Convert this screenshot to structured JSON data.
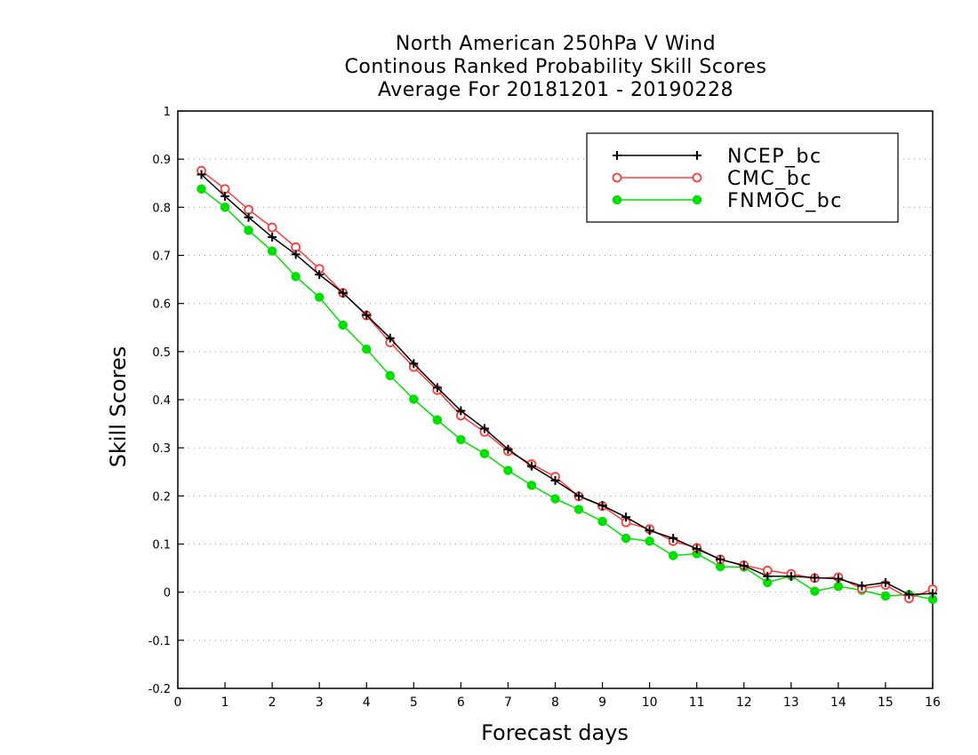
{
  "chart_data": {
    "type": "line",
    "title": [
      "North American 250hPa V Wind",
      "Continous Ranked Probability Skill Scores",
      "Average For 20181201 - 20190228"
    ],
    "xlabel": "Forecast days",
    "ylabel": "Skill Scores",
    "xlim": [
      0,
      16
    ],
    "ylim": [
      -0.2,
      1
    ],
    "x_ticks": [
      0,
      1,
      2,
      3,
      4,
      5,
      6,
      7,
      8,
      9,
      10,
      11,
      12,
      13,
      14,
      15,
      16
    ],
    "y_ticks": [
      -0.2,
      -0.1,
      0,
      0.1,
      0.2,
      0.3,
      0.4,
      0.5,
      0.6,
      0.7,
      0.8,
      0.9,
      1
    ],
    "grid": "horizontal dotted",
    "legend_position": "top-right",
    "x": [
      0.5,
      1,
      1.5,
      2,
      2.5,
      3,
      3.5,
      4,
      4.5,
      5,
      5.5,
      6,
      6.5,
      7,
      7.5,
      8,
      8.5,
      9,
      9.5,
      10,
      10.5,
      11,
      11.5,
      12,
      12.5,
      13,
      13.5,
      14,
      14.5,
      15,
      15.5,
      16
    ],
    "series": [
      {
        "name": "NCEP_bc",
        "color": "#000000",
        "marker": "plus",
        "values": [
          0.868,
          0.823,
          0.779,
          0.738,
          0.702,
          0.66,
          0.622,
          0.576,
          0.528,
          0.475,
          0.425,
          0.377,
          0.34,
          0.297,
          0.262,
          0.232,
          0.2,
          0.18,
          0.156,
          0.128,
          0.112,
          0.09,
          0.068,
          0.055,
          0.033,
          0.033,
          0.03,
          0.028,
          0.013,
          0.02,
          -0.005,
          -0.003
        ]
      },
      {
        "name": "CMC_bc",
        "color": "#ff3b3b",
        "marker": "open-circle",
        "values": [
          0.876,
          0.838,
          0.795,
          0.758,
          0.717,
          0.672,
          0.622,
          0.575,
          0.519,
          0.468,
          0.42,
          0.367,
          0.333,
          0.293,
          0.266,
          0.24,
          0.199,
          0.179,
          0.145,
          0.131,
          0.106,
          0.092,
          0.068,
          0.056,
          0.045,
          0.038,
          0.029,
          0.031,
          0.007,
          0.015,
          -0.013,
          0.006
        ]
      },
      {
        "name": "FNMOC_bc",
        "color": "#00e000",
        "marker": "filled-circle",
        "values": [
          0.838,
          0.8,
          0.752,
          0.709,
          0.656,
          0.613,
          0.555,
          0.505,
          0.45,
          0.401,
          0.358,
          0.317,
          0.288,
          0.253,
          0.222,
          0.194,
          0.172,
          0.147,
          0.112,
          0.106,
          0.076,
          0.08,
          0.053,
          0.052,
          0.02,
          0.034,
          0.002,
          0.012,
          0.004,
          -0.008,
          -0.005,
          -0.015
        ]
      }
    ]
  }
}
